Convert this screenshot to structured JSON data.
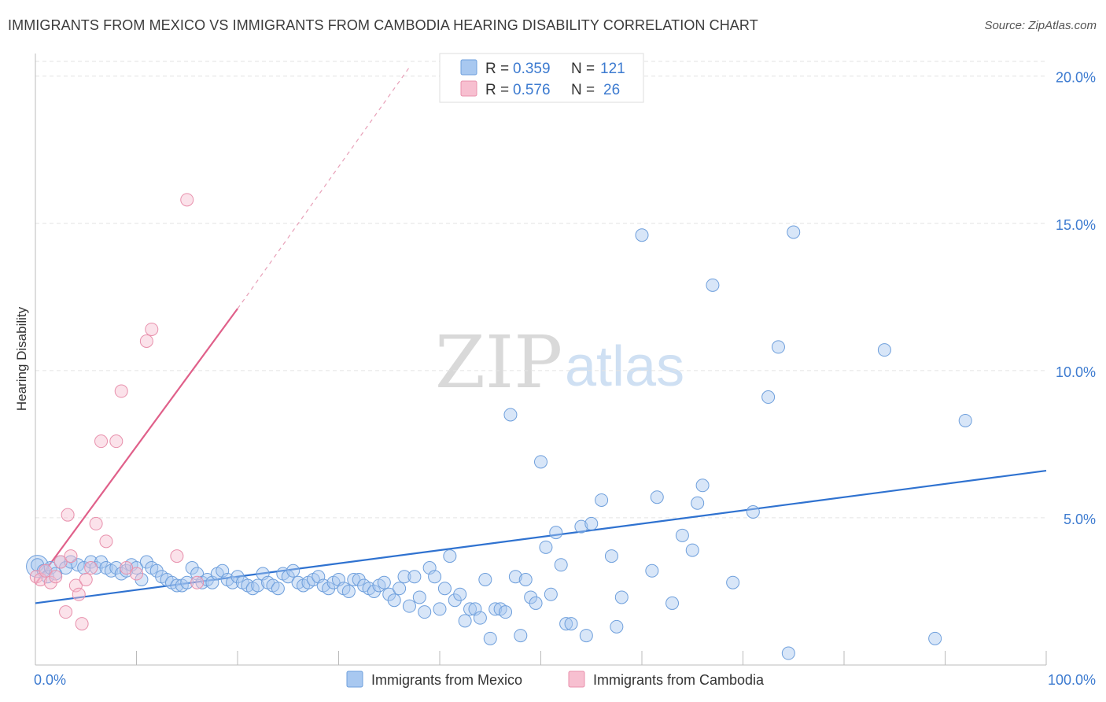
{
  "header": {
    "title": "IMMIGRANTS FROM MEXICO VS IMMIGRANTS FROM CAMBODIA HEARING DISABILITY CORRELATION CHART",
    "source": "Source: ZipAtlas.com"
  },
  "watermark": {
    "zip": "ZIP",
    "atlas": "atlas"
  },
  "colors": {
    "mexico_fill": "#a8c8f0",
    "mexico_stroke": "#6e9fdc",
    "mexico_line": "#2f72d0",
    "cambodia_fill": "#f7bfd0",
    "cambodia_stroke": "#e890ac",
    "cambodia_line": "#e0608a",
    "tick_text": "#3d7bd0",
    "grid": "#e3e3e3"
  },
  "legend": {
    "rows": [
      {
        "r_label": "R =",
        "r_value": "0.359",
        "n_label": "N =",
        "n_value": "121"
      },
      {
        "r_label": "R =",
        "r_value": "0.576",
        "n_label": "N =",
        "n_value": "26"
      }
    ]
  },
  "chart_data": {
    "type": "scatter",
    "ylabel": "Hearing Disability",
    "xlim": [
      0,
      100
    ],
    "ylim": [
      0,
      20.5
    ],
    "x_tick_labels": [
      "0.0%",
      "100.0%"
    ],
    "y_ticks": [
      5,
      10,
      15,
      20
    ],
    "y_tick_labels": [
      "5.0%",
      "10.0%",
      "15.0%",
      "20.0%"
    ],
    "grid": true,
    "legend_position": "bottom",
    "series": [
      {
        "name": "Immigrants from Mexico",
        "trend": {
          "x": [
            0,
            100
          ],
          "y": [
            2.1,
            6.6
          ],
          "extrapolate_dashed": false
        },
        "points": [
          [
            0.2,
            3.4
          ],
          [
            0.8,
            3.2
          ],
          [
            1.2,
            3.0
          ],
          [
            1.5,
            3.3
          ],
          [
            2.0,
            3.1
          ],
          [
            2.5,
            3.5
          ],
          [
            3.0,
            3.3
          ],
          [
            3.5,
            3.5
          ],
          [
            4.2,
            3.4
          ],
          [
            4.8,
            3.3
          ],
          [
            5.5,
            3.5
          ],
          [
            6.0,
            3.3
          ],
          [
            6.5,
            3.5
          ],
          [
            7.0,
            3.3
          ],
          [
            7.5,
            3.2
          ],
          [
            8.0,
            3.3
          ],
          [
            8.5,
            3.1
          ],
          [
            9.0,
            3.2
          ],
          [
            9.5,
            3.4
          ],
          [
            10.0,
            3.3
          ],
          [
            10.5,
            2.9
          ],
          [
            11.0,
            3.5
          ],
          [
            11.5,
            3.3
          ],
          [
            12.0,
            3.2
          ],
          [
            12.5,
            3.0
          ],
          [
            13.0,
            2.9
          ],
          [
            13.5,
            2.8
          ],
          [
            14.0,
            2.7
          ],
          [
            14.5,
            2.7
          ],
          [
            15.0,
            2.8
          ],
          [
            15.5,
            3.3
          ],
          [
            16.0,
            3.1
          ],
          [
            16.5,
            2.8
          ],
          [
            17.0,
            2.9
          ],
          [
            17.5,
            2.8
          ],
          [
            18.0,
            3.1
          ],
          [
            18.5,
            3.2
          ],
          [
            19.0,
            2.9
          ],
          [
            19.5,
            2.8
          ],
          [
            20.0,
            3.0
          ],
          [
            20.5,
            2.8
          ],
          [
            21.0,
            2.7
          ],
          [
            21.5,
            2.6
          ],
          [
            22.0,
            2.7
          ],
          [
            22.5,
            3.1
          ],
          [
            23.0,
            2.8
          ],
          [
            23.5,
            2.7
          ],
          [
            24.0,
            2.6
          ],
          [
            24.5,
            3.1
          ],
          [
            25.0,
            3.0
          ],
          [
            25.5,
            3.2
          ],
          [
            26.0,
            2.8
          ],
          [
            26.5,
            2.7
          ],
          [
            27.0,
            2.8
          ],
          [
            27.5,
            2.9
          ],
          [
            28.0,
            3.0
          ],
          [
            28.5,
            2.7
          ],
          [
            29.0,
            2.6
          ],
          [
            29.5,
            2.8
          ],
          [
            30.0,
            2.9
          ],
          [
            30.5,
            2.6
          ],
          [
            31.0,
            2.5
          ],
          [
            31.5,
            2.9
          ],
          [
            32.0,
            2.9
          ],
          [
            32.5,
            2.7
          ],
          [
            33.0,
            2.6
          ],
          [
            33.5,
            2.5
          ],
          [
            34.0,
            2.7
          ],
          [
            34.5,
            2.8
          ],
          [
            35.0,
            2.4
          ],
          [
            35.5,
            2.2
          ],
          [
            36.0,
            2.6
          ],
          [
            36.5,
            3.0
          ],
          [
            37.0,
            2.0
          ],
          [
            37.5,
            3.0
          ],
          [
            38.0,
            2.3
          ],
          [
            38.5,
            1.8
          ],
          [
            39.0,
            3.3
          ],
          [
            39.5,
            3.0
          ],
          [
            40.0,
            1.9
          ],
          [
            40.5,
            2.6
          ],
          [
            41.0,
            3.7
          ],
          [
            41.5,
            2.2
          ],
          [
            42.0,
            2.4
          ],
          [
            42.5,
            1.5
          ],
          [
            43.0,
            1.9
          ],
          [
            43.5,
            1.9
          ],
          [
            44.0,
            1.6
          ],
          [
            44.5,
            2.9
          ],
          [
            45.0,
            0.9
          ],
          [
            45.5,
            1.9
          ],
          [
            46.0,
            1.9
          ],
          [
            46.5,
            1.8
          ],
          [
            47.0,
            8.5
          ],
          [
            47.5,
            3.0
          ],
          [
            48.0,
            1.0
          ],
          [
            48.5,
            2.9
          ],
          [
            49.0,
            2.3
          ],
          [
            49.5,
            2.1
          ],
          [
            50.0,
            6.9
          ],
          [
            50.5,
            4.0
          ],
          [
            51.0,
            2.4
          ],
          [
            51.5,
            4.5
          ],
          [
            52.0,
            3.4
          ],
          [
            52.5,
            1.4
          ],
          [
            53.0,
            1.4
          ],
          [
            54.0,
            4.7
          ],
          [
            54.5,
            1.0
          ],
          [
            55.0,
            4.8
          ],
          [
            56.0,
            5.6
          ],
          [
            57.0,
            3.7
          ],
          [
            57.5,
            1.3
          ],
          [
            58.0,
            2.3
          ],
          [
            60.0,
            14.6
          ],
          [
            61.0,
            3.2
          ],
          [
            61.5,
            5.7
          ],
          [
            63.0,
            2.1
          ],
          [
            64.0,
            4.4
          ],
          [
            65.0,
            3.9
          ],
          [
            65.5,
            5.5
          ],
          [
            66.0,
            6.1
          ],
          [
            67.0,
            12.9
          ],
          [
            69.0,
            2.8
          ],
          [
            71.0,
            5.2
          ],
          [
            72.5,
            9.1
          ],
          [
            73.5,
            10.8
          ],
          [
            74.5,
            0.4
          ],
          [
            75.0,
            14.7
          ],
          [
            84.0,
            10.7
          ],
          [
            89.0,
            0.9
          ],
          [
            92.0,
            8.3
          ]
        ]
      },
      {
        "name": "Immigrants from Cambodia",
        "trend": {
          "x": [
            0,
            20
          ],
          "y": [
            2.75,
            12.1
          ],
          "extrapolate_dashed": true,
          "dashed_to": [
            37,
            20.3
          ]
        },
        "points": [
          [
            0.1,
            3.0
          ],
          [
            0.5,
            2.9
          ],
          [
            1.0,
            3.2
          ],
          [
            1.5,
            2.8
          ],
          [
            2.0,
            3.0
          ],
          [
            2.5,
            3.5
          ],
          [
            3.0,
            1.8
          ],
          [
            3.2,
            5.1
          ],
          [
            3.5,
            3.7
          ],
          [
            4.0,
            2.7
          ],
          [
            4.3,
            2.4
          ],
          [
            4.6,
            1.4
          ],
          [
            5.0,
            2.9
          ],
          [
            5.5,
            3.3
          ],
          [
            6.0,
            4.8
          ],
          [
            6.5,
            7.6
          ],
          [
            7.0,
            4.2
          ],
          [
            8.0,
            7.6
          ],
          [
            8.5,
            9.3
          ],
          [
            9.0,
            3.3
          ],
          [
            10.0,
            3.1
          ],
          [
            11.0,
            11.0
          ],
          [
            11.5,
            11.4
          ],
          [
            14.0,
            3.7
          ],
          [
            15.0,
            15.8
          ],
          [
            16.0,
            2.8
          ]
        ]
      }
    ]
  },
  "bottom_legend": {
    "items": [
      {
        "label": "Immigrants from Mexico"
      },
      {
        "label": "Immigrants from Cambodia"
      }
    ]
  }
}
